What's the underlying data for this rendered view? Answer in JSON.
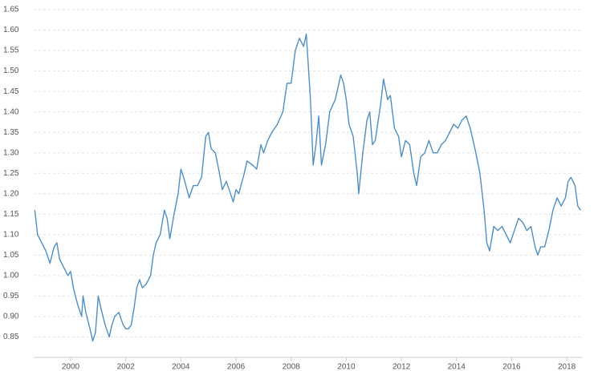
{
  "chart_data": {
    "type": "line",
    "x": [
      1998.7,
      1998.8,
      1998.95,
      1999.1,
      1999.25,
      1999.4,
      1999.5,
      1999.6,
      1999.75,
      1999.9,
      2000.0,
      2000.1,
      2000.25,
      2000.4,
      2000.45,
      2000.55,
      2000.7,
      2000.8,
      2000.9,
      2001.0,
      2001.1,
      2001.25,
      2001.4,
      2001.5,
      2001.6,
      2001.75,
      2001.9,
      2002.0,
      2002.1,
      2002.2,
      2002.3,
      2002.4,
      2002.5,
      2002.6,
      2002.75,
      2002.9,
      2003.0,
      2003.1,
      2003.25,
      2003.4,
      2003.5,
      2003.6,
      2003.75,
      2003.9,
      2004.0,
      2004.1,
      2004.3,
      2004.45,
      2004.6,
      2004.75,
      2004.9,
      2005.0,
      2005.1,
      2005.25,
      2005.4,
      2005.5,
      2005.65,
      2005.8,
      2005.9,
      2006.0,
      2006.1,
      2006.3,
      2006.4,
      2006.6,
      2006.75,
      2006.9,
      2007.0,
      2007.15,
      2007.3,
      2007.5,
      2007.7,
      2007.85,
      2008.0,
      2008.15,
      2008.3,
      2008.45,
      2008.55,
      2008.7,
      2008.8,
      2008.9,
      2009.0,
      2009.1,
      2009.25,
      2009.4,
      2009.6,
      2009.8,
      2009.9,
      2010.0,
      2010.1,
      2010.25,
      2010.4,
      2010.45,
      2010.6,
      2010.75,
      2010.85,
      2010.95,
      2011.05,
      2011.25,
      2011.35,
      2011.5,
      2011.6,
      2011.75,
      2011.9,
      2012.0,
      2012.15,
      2012.3,
      2012.45,
      2012.55,
      2012.7,
      2012.85,
      2013.0,
      2013.15,
      2013.3,
      2013.45,
      2013.6,
      2013.75,
      2013.9,
      2014.05,
      2014.2,
      2014.35,
      2014.5,
      2014.7,
      2014.85,
      2015.0,
      2015.1,
      2015.2,
      2015.35,
      2015.5,
      2015.65,
      2015.8,
      2015.95,
      2016.1,
      2016.25,
      2016.4,
      2016.55,
      2016.7,
      2016.85,
      2016.95,
      2017.05,
      2017.2,
      2017.35,
      2017.5,
      2017.65,
      2017.8,
      2017.95,
      2018.05,
      2018.15,
      2018.3,
      2018.4,
      2018.5
    ],
    "series": [
      {
        "color": "#4f8fc4",
        "values": [
          1.16,
          1.1,
          1.08,
          1.06,
          1.03,
          1.07,
          1.08,
          1.04,
          1.02,
          1.0,
          1.01,
          0.97,
          0.93,
          0.9,
          0.95,
          0.91,
          0.87,
          0.84,
          0.86,
          0.95,
          0.92,
          0.88,
          0.85,
          0.88,
          0.9,
          0.91,
          0.88,
          0.87,
          0.87,
          0.88,
          0.92,
          0.97,
          0.99,
          0.97,
          0.98,
          1.0,
          1.05,
          1.08,
          1.1,
          1.16,
          1.14,
          1.09,
          1.15,
          1.2,
          1.26,
          1.24,
          1.19,
          1.22,
          1.22,
          1.24,
          1.34,
          1.35,
          1.31,
          1.3,
          1.25,
          1.21,
          1.23,
          1.2,
          1.18,
          1.21,
          1.2,
          1.25,
          1.28,
          1.27,
          1.26,
          1.32,
          1.3,
          1.33,
          1.35,
          1.37,
          1.4,
          1.47,
          1.47,
          1.55,
          1.58,
          1.56,
          1.59,
          1.43,
          1.27,
          1.32,
          1.39,
          1.27,
          1.32,
          1.4,
          1.43,
          1.49,
          1.47,
          1.43,
          1.37,
          1.34,
          1.25,
          1.2,
          1.3,
          1.38,
          1.4,
          1.32,
          1.33,
          1.42,
          1.48,
          1.43,
          1.44,
          1.36,
          1.34,
          1.29,
          1.33,
          1.32,
          1.25,
          1.22,
          1.29,
          1.3,
          1.33,
          1.3,
          1.3,
          1.32,
          1.33,
          1.35,
          1.37,
          1.36,
          1.38,
          1.39,
          1.36,
          1.3,
          1.25,
          1.16,
          1.08,
          1.06,
          1.12,
          1.11,
          1.12,
          1.1,
          1.08,
          1.11,
          1.14,
          1.13,
          1.11,
          1.12,
          1.07,
          1.05,
          1.07,
          1.07,
          1.11,
          1.16,
          1.19,
          1.17,
          1.19,
          1.23,
          1.24,
          1.22,
          1.17,
          1.16
        ]
      }
    ],
    "xlim": [
      1998.66,
      2018.55
    ],
    "xticks": [
      2000,
      2002,
      2004,
      2006,
      2008,
      2010,
      2012,
      2014,
      2016,
      2018
    ],
    "ylim": [
      0.8,
      1.65
    ],
    "yticks": [
      0.85,
      {
        "value": 0.9,
        "label": "0.90"
      },
      0.95,
      {
        "value": 1.0,
        "label": "1.00"
      },
      1.05,
      {
        "value": 1.1,
        "label": "1.10"
      },
      1.15,
      {
        "value": 1.2,
        "label": "1.20"
      },
      1.25,
      {
        "value": 1.3,
        "label": "1.30"
      },
      1.35,
      {
        "value": 1.4,
        "label": "1.40"
      },
      1.45,
      {
        "value": 1.5,
        "label": "1.50"
      },
      1.55,
      {
        "value": 1.6,
        "label": "1.60"
      },
      1.65
    ],
    "grid": true
  }
}
